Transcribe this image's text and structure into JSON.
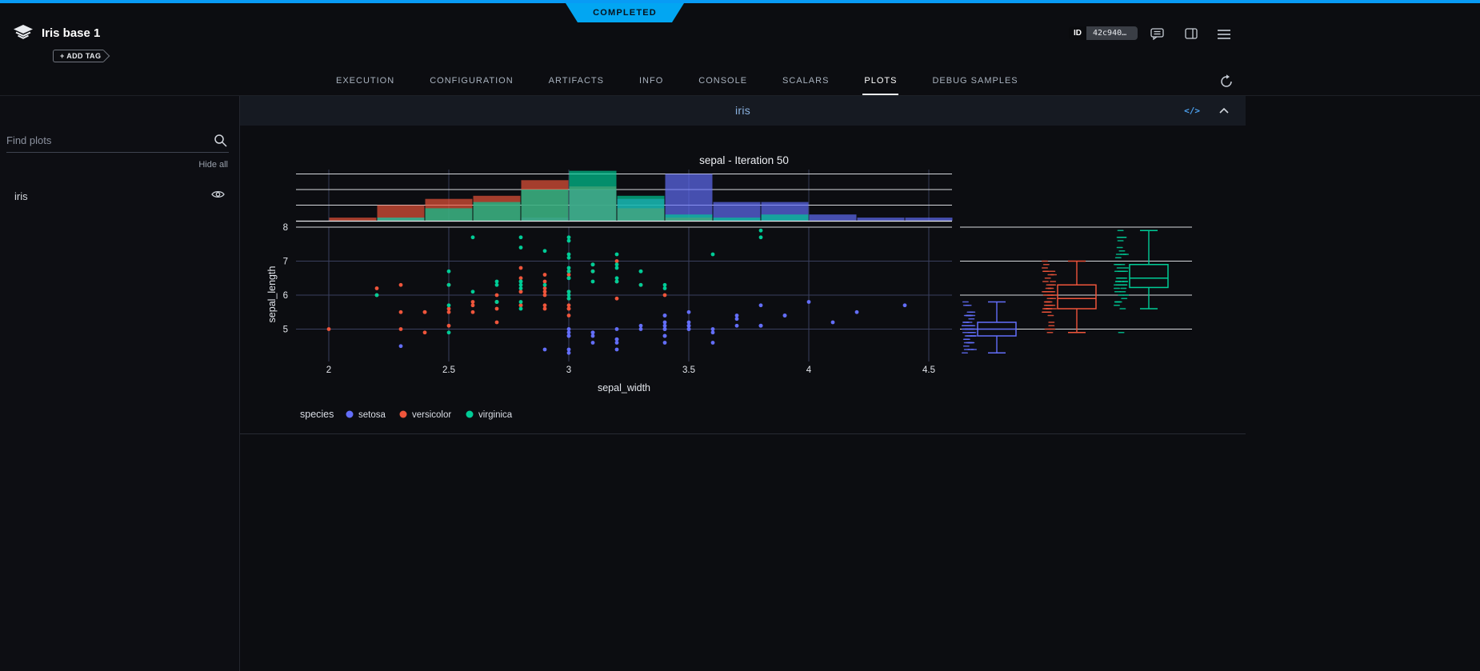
{
  "colors": {
    "accent_blue": "#089bf5",
    "status_completed": "#02a6f2",
    "plot_title_blue": "#8ab2e0",
    "setosa": "#636efa",
    "versicolor": "#ef553b",
    "virginica": "#00cc96"
  },
  "header": {
    "title": "Iris base 1",
    "add_tag_label": "+ ADD TAG",
    "status_badge": "COMPLETED",
    "id_label": "ID",
    "id_value": "42c940ce..."
  },
  "tabs": {
    "active": "PLOTS",
    "items": [
      {
        "label": "EXECUTION"
      },
      {
        "label": "CONFIGURATION"
      },
      {
        "label": "ARTIFACTS"
      },
      {
        "label": "INFO"
      },
      {
        "label": "CONSOLE"
      },
      {
        "label": "SCALARS"
      },
      {
        "label": "PLOTS"
      },
      {
        "label": "DEBUG SAMPLES"
      }
    ]
  },
  "sidebar": {
    "search_placeholder": "Find plots",
    "hide_all_label": "Hide all",
    "items": [
      {
        "label": "iris"
      }
    ]
  },
  "plot_card": {
    "title": "iris",
    "code_icon_label": "</>"
  },
  "chart_data": {
    "type": "scatter",
    "title": "sepal - Iteration 50",
    "xlabel": "sepal_width",
    "ylabel": "sepal_length",
    "legend_title": "species",
    "x_ticks": [
      2,
      2.5,
      3,
      3.5,
      4,
      4.5
    ],
    "y_ticks": [
      5,
      6,
      7,
      8
    ],
    "xlim": [
      1.86,
      4.6
    ],
    "ylim": [
      4.05,
      8.05
    ],
    "grid": true,
    "legend_position": "bottom",
    "marginal_top": "histogram",
    "marginal_right": "box",
    "histogram_bin_width": 0.2,
    "histogram_bin_start": 2.0,
    "series": [
      {
        "name": "setosa",
        "color": "#636efa",
        "x": [
          3.5,
          3.0,
          3.2,
          3.1,
          3.6,
          3.9,
          3.4,
          3.4,
          2.9,
          3.1,
          3.7,
          3.4,
          3.0,
          3.0,
          4.0,
          4.4,
          3.9,
          3.5,
          3.8,
          3.8,
          3.4,
          3.7,
          3.6,
          3.3,
          3.4,
          3.0,
          3.4,
          3.5,
          3.4,
          3.2,
          3.1,
          3.4,
          4.1,
          4.2,
          3.1,
          3.2,
          3.5,
          3.6,
          3.0,
          3.4,
          3.5,
          2.3,
          3.2,
          3.5,
          3.8,
          3.0,
          3.8,
          3.2,
          3.7,
          3.3
        ],
        "y": [
          5.1,
          4.9,
          4.7,
          4.6,
          5.0,
          5.4,
          4.6,
          5.0,
          4.4,
          4.9,
          5.4,
          4.8,
          4.8,
          4.3,
          5.8,
          5.7,
          5.4,
          5.1,
          5.7,
          5.1,
          5.4,
          5.1,
          4.6,
          5.1,
          4.8,
          5.0,
          5.0,
          5.2,
          5.2,
          4.7,
          4.8,
          5.4,
          5.2,
          5.5,
          4.9,
          5.0,
          5.5,
          4.9,
          4.4,
          5.1,
          5.0,
          4.5,
          4.4,
          5.0,
          5.1,
          4.8,
          5.1,
          4.6,
          5.3,
          5.0
        ]
      },
      {
        "name": "versicolor",
        "color": "#ef553b",
        "x": [
          3.2,
          3.2,
          3.1,
          2.3,
          2.8,
          2.8,
          3.3,
          2.4,
          2.9,
          2.7,
          2.0,
          3.0,
          2.2,
          2.9,
          2.9,
          3.1,
          3.0,
          2.7,
          2.2,
          2.5,
          3.2,
          2.8,
          2.5,
          2.8,
          2.9,
          3.0,
          2.8,
          3.0,
          2.9,
          2.6,
          2.4,
          2.4,
          2.7,
          2.7,
          3.0,
          3.4,
          3.1,
          2.3,
          3.0,
          2.5,
          2.6,
          3.0,
          2.6,
          2.3,
          2.7,
          3.0,
          2.9,
          2.9,
          2.5,
          2.8
        ],
        "y": [
          7.0,
          6.4,
          6.9,
          5.5,
          6.5,
          5.7,
          6.3,
          4.9,
          6.6,
          5.2,
          5.0,
          5.9,
          6.0,
          6.1,
          5.6,
          6.7,
          5.6,
          5.8,
          6.2,
          5.6,
          5.9,
          6.1,
          6.3,
          6.1,
          6.4,
          6.6,
          6.8,
          6.7,
          6.0,
          5.7,
          5.5,
          5.5,
          5.8,
          6.0,
          5.4,
          6.0,
          6.7,
          6.3,
          5.6,
          5.5,
          5.5,
          6.1,
          5.8,
          5.0,
          5.6,
          5.7,
          5.7,
          6.2,
          5.1,
          5.7
        ]
      },
      {
        "name": "virginica",
        "color": "#00cc96",
        "x": [
          3.3,
          2.7,
          3.0,
          2.9,
          3.0,
          3.0,
          2.5,
          2.9,
          2.5,
          3.6,
          3.2,
          2.7,
          3.0,
          2.5,
          2.8,
          3.2,
          3.0,
          3.8,
          2.6,
          2.2,
          3.2,
          2.8,
          2.8,
          2.7,
          3.3,
          3.2,
          2.8,
          3.0,
          2.8,
          3.0,
          2.8,
          3.8,
          2.8,
          2.8,
          2.6,
          3.0,
          3.4,
          3.1,
          3.0,
          3.1,
          3.1,
          3.1,
          2.7,
          3.2,
          3.3,
          3.0,
          2.5,
          3.0,
          3.4,
          3.0
        ],
        "y": [
          6.3,
          5.8,
          7.1,
          6.3,
          6.5,
          7.6,
          4.9,
          7.3,
          6.7,
          7.2,
          6.5,
          6.4,
          6.8,
          5.7,
          5.8,
          6.4,
          6.5,
          7.7,
          7.7,
          6.0,
          6.9,
          5.6,
          7.7,
          6.3,
          6.7,
          7.2,
          6.2,
          6.1,
          6.4,
          7.2,
          7.4,
          7.9,
          6.4,
          6.3,
          6.1,
          7.7,
          6.3,
          6.4,
          6.0,
          6.9,
          6.7,
          6.9,
          5.8,
          6.8,
          6.7,
          6.7,
          6.3,
          6.5,
          6.2,
          5.9
        ]
      }
    ]
  }
}
